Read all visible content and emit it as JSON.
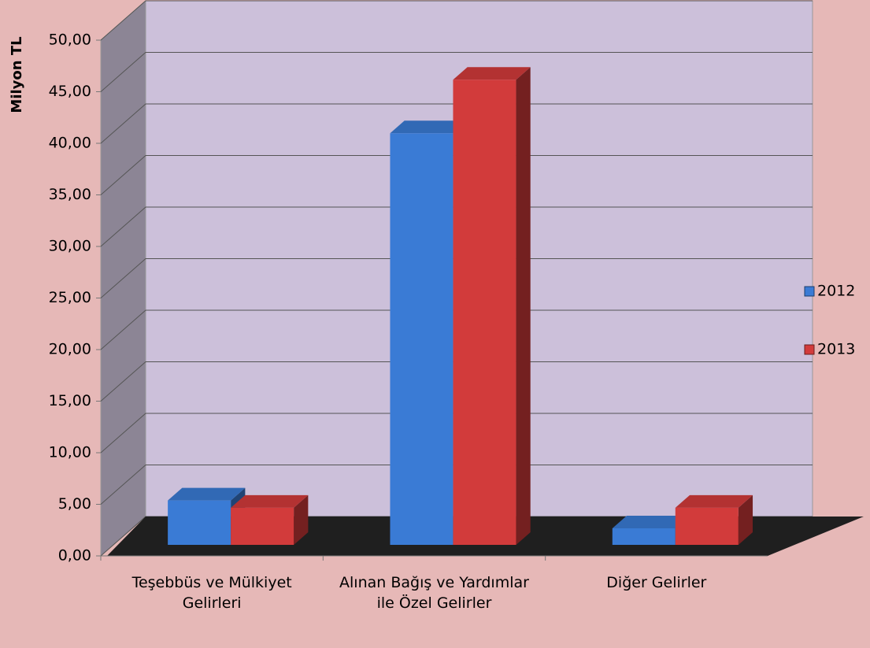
{
  "chart_data": {
    "type": "bar3d",
    "y_label": "Milyon TL",
    "categories": [
      "Teşebbüs ve Mülkiyet Gelirleri",
      "Alınan Bağış ve Yardımlar ile Özel Gelirler",
      "Diğer Gelirler"
    ],
    "series": [
      {
        "name": "2012",
        "color": "#3a7bd5",
        "values": [
          4.3,
          39.9,
          1.6
        ]
      },
      {
        "name": "2013",
        "color": "#d23b3b",
        "values": [
          3.6,
          45.1,
          3.6
        ]
      }
    ],
    "ylim": [
      0,
      50
    ],
    "yticks": [
      {
        "value": 0,
        "label": "0,00"
      },
      {
        "value": 5,
        "label": "5,00"
      },
      {
        "value": 10,
        "label": "10,00"
      },
      {
        "value": 15,
        "label": "15,00"
      },
      {
        "value": 20,
        "label": "20,00"
      },
      {
        "value": 25,
        "label": "25,00"
      },
      {
        "value": 30,
        "label": "30,00"
      },
      {
        "value": 35,
        "label": "35,00"
      },
      {
        "value": 40,
        "label": "40,00"
      },
      {
        "value": 45,
        "label": "45,00"
      },
      {
        "value": 50,
        "label": "50,00"
      }
    ],
    "grid": true,
    "legend": "right"
  }
}
